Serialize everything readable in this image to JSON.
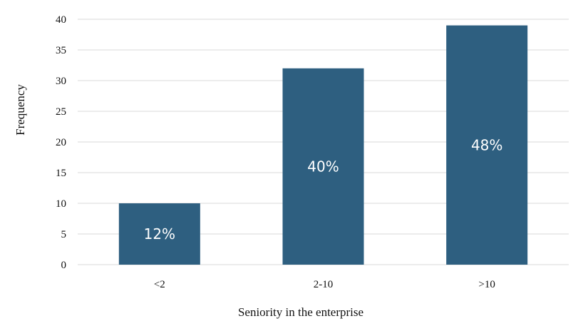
{
  "chart_data": {
    "type": "bar",
    "categories": [
      "<2",
      "2-10",
      ">10"
    ],
    "values": [
      10,
      32,
      39
    ],
    "data_labels": [
      "12%",
      "40%",
      "48%"
    ],
    "xlabel": "Seniority in the enterprise",
    "ylabel": "Frequency",
    "ylim": [
      0,
      40
    ],
    "yticks": [
      0,
      5,
      10,
      15,
      20,
      25,
      30,
      35,
      40
    ],
    "grid": true,
    "legend": "none",
    "bar_color": "#2e5f80"
  }
}
